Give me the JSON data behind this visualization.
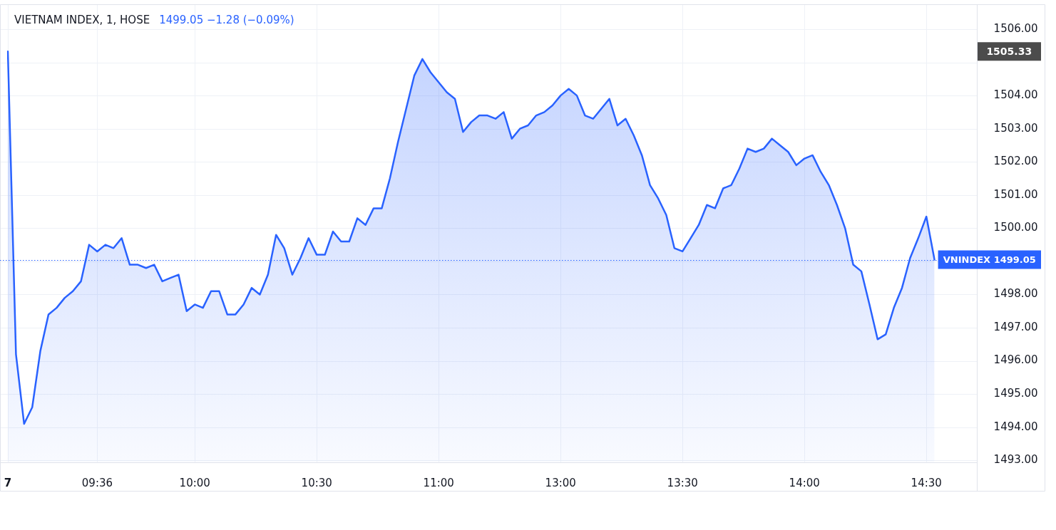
{
  "chart_data": {
    "type": "area",
    "title": "VIETNAM INDEX, 1, HOSE",
    "subtitle": "1499.05 −1.28 (−0.09%)",
    "categories": [
      "7",
      null,
      null,
      null,
      null,
      null,
      null,
      null,
      null,
      null,
      null,
      "09:36",
      null,
      null,
      null,
      null,
      null,
      null,
      null,
      null,
      null,
      null,
      null,
      "10:00",
      null,
      null,
      null,
      null,
      null,
      null,
      null,
      null,
      null,
      null,
      null,
      null,
      null,
      null,
      "10:30",
      null,
      null,
      null,
      null,
      null,
      null,
      null,
      null,
      null,
      null,
      null,
      null,
      null,
      null,
      "11:00",
      null,
      null,
      null,
      null,
      null,
      null,
      null,
      null,
      null,
      null,
      null,
      null,
      null,
      null,
      "13:00",
      null,
      null,
      null,
      null,
      null,
      null,
      null,
      null,
      null,
      null,
      null,
      null,
      null,
      null,
      "13:30",
      null,
      null,
      null,
      null,
      null,
      null,
      null,
      null,
      null,
      null,
      null,
      null,
      null,
      null,
      "14:00",
      null,
      null,
      null,
      null,
      null,
      null,
      null,
      null,
      null,
      null,
      null,
      null,
      null,
      null,
      "14:30",
      null
    ],
    "series": [
      {
        "color": "#2962ff",
        "values": [
          1505.33,
          1496.2,
          1494.1,
          1494.6,
          1496.3,
          1497.4,
          1497.6,
          1497.9,
          1498.1,
          1498.4,
          1499.5,
          1499.3,
          1499.5,
          1499.4,
          1499.7,
          1498.9,
          1498.9,
          1498.8,
          1498.9,
          1498.4,
          1498.5,
          1498.6,
          1497.5,
          1497.7,
          1497.6,
          1498.1,
          1498.1,
          1497.4,
          1497.4,
          1497.7,
          1498.2,
          1498.0,
          1498.6,
          1499.8,
          1499.4,
          1498.6,
          1499.1,
          1499.7,
          1499.2,
          1499.2,
          1499.9,
          1499.6,
          1499.6,
          1500.3,
          1500.1,
          1500.6,
          1500.6,
          1501.5,
          1502.6,
          1503.6,
          1504.6,
          1505.1,
          1504.7,
          1504.4,
          1504.1,
          1503.9,
          1502.9,
          1503.2,
          1503.4,
          1503.4,
          1503.3,
          1503.5,
          1502.7,
          1503.0,
          1503.1,
          1503.4,
          1503.5,
          1503.7,
          1504.0,
          1504.2,
          1504.0,
          1503.4,
          1503.3,
          1503.6,
          1503.9,
          1503.1,
          1503.3,
          1502.8,
          1502.2,
          1501.3,
          1500.9,
          1500.4,
          1499.4,
          1499.3,
          1499.7,
          1500.1,
          1500.7,
          1500.6,
          1501.2,
          1501.3,
          1501.8,
          1502.4,
          1502.3,
          1502.4,
          1502.7,
          1502.5,
          1502.3,
          1501.9,
          1502.1,
          1502.2,
          1501.7,
          1501.3,
          1500.7,
          1500.0,
          1498.9,
          1498.7,
          1497.7,
          1496.65,
          1496.8,
          1497.6,
          1498.2,
          1499.1,
          1499.7,
          1500.35,
          1499.05
        ]
      }
    ],
    "ylim": [
      1492.95,
      1506.73
    ],
    "yticks": [
      {
        "value": 1493,
        "label": "1493.00"
      },
      {
        "value": 1494,
        "label": "1494.00"
      },
      {
        "value": 1495,
        "label": "1495.00"
      },
      {
        "value": 1496,
        "label": "1496.00"
      },
      {
        "value": 1497,
        "label": "1497.00"
      },
      {
        "value": 1498,
        "label": "1498.00"
      },
      {
        "value": 1499,
        "label": null
      },
      {
        "value": 1500,
        "label": "1500.00"
      },
      {
        "value": 1501,
        "label": "1501.00"
      },
      {
        "value": 1502,
        "label": "1502.00"
      },
      {
        "value": 1503,
        "label": "1503.00"
      },
      {
        "value": 1504,
        "label": "1504.00"
      },
      {
        "value": 1505,
        "label": null
      },
      {
        "value": 1506,
        "label": "1506.00"
      }
    ],
    "grid": true,
    "ref_lines": [
      {
        "axis": "y",
        "value": 1499.05,
        "label": "VNINDEX 1499.05",
        "color": "#2962ff",
        "line_style": "dotted"
      }
    ],
    "annotations": [
      "1505.33"
    ]
  }
}
